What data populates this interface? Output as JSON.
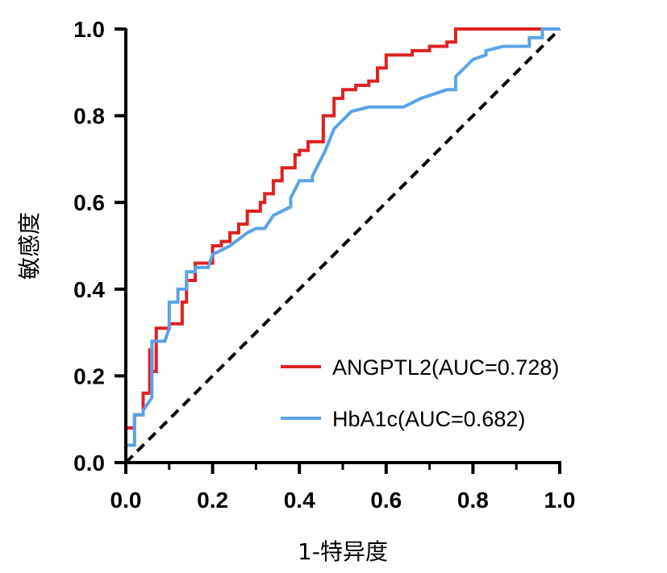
{
  "chart_data": {
    "type": "line",
    "xlabel": "1-特异度",
    "ylabel": "敏感度",
    "xlim": [
      0,
      1
    ],
    "ylim": [
      0,
      1
    ],
    "x_ticks": [
      "0.0",
      "0.2",
      "0.4",
      "0.6",
      "0.8",
      "1.0"
    ],
    "y_ticks": [
      "0.0",
      "0.2",
      "0.4",
      "0.6",
      "0.8",
      "1.0"
    ],
    "grid": false,
    "legend_position": "bottom-right",
    "reference_line": {
      "style": "dashed",
      "color": "#000000",
      "points": [
        [
          0,
          0
        ],
        [
          1,
          1
        ]
      ]
    },
    "series": [
      {
        "name": "ANGPTL2(AUC=0.728)",
        "color": "#e02020",
        "points": [
          [
            0,
            0
          ],
          [
            0,
            0.08
          ],
          [
            0.02,
            0.08
          ],
          [
            0.02,
            0.11
          ],
          [
            0.04,
            0.11
          ],
          [
            0.04,
            0.16
          ],
          [
            0.055,
            0.16
          ],
          [
            0.055,
            0.26
          ],
          [
            0.06,
            0.26
          ],
          [
            0.06,
            0.21
          ],
          [
            0.07,
            0.21
          ],
          [
            0.07,
            0.31
          ],
          [
            0.1,
            0.31
          ],
          [
            0.1,
            0.32
          ],
          [
            0.13,
            0.32
          ],
          [
            0.13,
            0.37
          ],
          [
            0.14,
            0.37
          ],
          [
            0.14,
            0.42
          ],
          [
            0.16,
            0.42
          ],
          [
            0.16,
            0.46
          ],
          [
            0.2,
            0.46
          ],
          [
            0.2,
            0.5
          ],
          [
            0.22,
            0.5
          ],
          [
            0.22,
            0.51
          ],
          [
            0.24,
            0.51
          ],
          [
            0.24,
            0.53
          ],
          [
            0.26,
            0.53
          ],
          [
            0.26,
            0.55
          ],
          [
            0.28,
            0.55
          ],
          [
            0.28,
            0.58
          ],
          [
            0.31,
            0.58
          ],
          [
            0.31,
            0.6
          ],
          [
            0.32,
            0.6
          ],
          [
            0.32,
            0.62
          ],
          [
            0.34,
            0.62
          ],
          [
            0.34,
            0.65
          ],
          [
            0.36,
            0.65
          ],
          [
            0.36,
            0.68
          ],
          [
            0.39,
            0.68
          ],
          [
            0.39,
            0.71
          ],
          [
            0.4,
            0.71
          ],
          [
            0.4,
            0.72
          ],
          [
            0.42,
            0.72
          ],
          [
            0.42,
            0.74
          ],
          [
            0.455,
            0.74
          ],
          [
            0.455,
            0.8
          ],
          [
            0.48,
            0.8
          ],
          [
            0.48,
            0.84
          ],
          [
            0.5,
            0.84
          ],
          [
            0.5,
            0.86
          ],
          [
            0.53,
            0.86
          ],
          [
            0.53,
            0.87
          ],
          [
            0.56,
            0.87
          ],
          [
            0.56,
            0.88
          ],
          [
            0.58,
            0.88
          ],
          [
            0.58,
            0.91
          ],
          [
            0.6,
            0.91
          ],
          [
            0.6,
            0.94
          ],
          [
            0.66,
            0.94
          ],
          [
            0.66,
            0.95
          ],
          [
            0.7,
            0.95
          ],
          [
            0.7,
            0.96
          ],
          [
            0.74,
            0.96
          ],
          [
            0.74,
            0.97
          ],
          [
            0.76,
            0.97
          ],
          [
            0.76,
            1.0
          ],
          [
            1.0,
            1.0
          ]
        ]
      },
      {
        "name": "HbA1c(AUC=0.682)",
        "color": "#5aa3e6",
        "points": [
          [
            0,
            0
          ],
          [
            0,
            0.04
          ],
          [
            0.02,
            0.04
          ],
          [
            0.02,
            0.11
          ],
          [
            0.04,
            0.11
          ],
          [
            0.04,
            0.12
          ],
          [
            0.06,
            0.15
          ],
          [
            0.06,
            0.28
          ],
          [
            0.09,
            0.28
          ],
          [
            0.1,
            0.31
          ],
          [
            0.1,
            0.37
          ],
          [
            0.12,
            0.37
          ],
          [
            0.12,
            0.4
          ],
          [
            0.14,
            0.4
          ],
          [
            0.14,
            0.44
          ],
          [
            0.16,
            0.44
          ],
          [
            0.16,
            0.45
          ],
          [
            0.19,
            0.45
          ],
          [
            0.2,
            0.48
          ],
          [
            0.22,
            0.49
          ],
          [
            0.24,
            0.5
          ],
          [
            0.28,
            0.53
          ],
          [
            0.3,
            0.54
          ],
          [
            0.32,
            0.54
          ],
          [
            0.34,
            0.57
          ],
          [
            0.38,
            0.59
          ],
          [
            0.38,
            0.61
          ],
          [
            0.4,
            0.65
          ],
          [
            0.43,
            0.65
          ],
          [
            0.43,
            0.66
          ],
          [
            0.46,
            0.72
          ],
          [
            0.48,
            0.77
          ],
          [
            0.52,
            0.81
          ],
          [
            0.56,
            0.82
          ],
          [
            0.64,
            0.82
          ],
          [
            0.68,
            0.84
          ],
          [
            0.74,
            0.86
          ],
          [
            0.76,
            0.86
          ],
          [
            0.76,
            0.89
          ],
          [
            0.8,
            0.93
          ],
          [
            0.83,
            0.94
          ],
          [
            0.83,
            0.95
          ],
          [
            0.87,
            0.96
          ],
          [
            0.93,
            0.96
          ],
          [
            0.93,
            0.98
          ],
          [
            0.96,
            0.98
          ],
          [
            0.96,
            1.0
          ],
          [
            1.0,
            1.0
          ]
        ]
      }
    ]
  }
}
